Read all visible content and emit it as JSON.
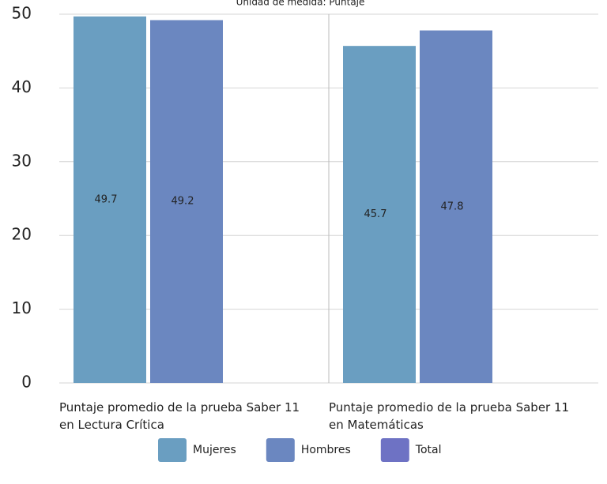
{
  "chart_data": {
    "type": "bar",
    "subtitle": "Unidad de medida: Puntaje",
    "categories": [
      "Puntaje promedio de la prueba Saber 11 en Lectura Crítica",
      "Puntaje promedio de la prueba Saber 11 en Matemáticas"
    ],
    "series": [
      {
        "name": "Mujeres",
        "color": "#6a9ec1",
        "values": [
          49.7,
          45.7
        ]
      },
      {
        "name": "Hombres",
        "color": "#6b87c0",
        "values": [
          49.2,
          47.8
        ]
      },
      {
        "name": "Total",
        "color": "#6e72c4",
        "values": [
          null,
          null
        ]
      }
    ],
    "ylim": [
      0,
      50
    ],
    "yticks": [
      0,
      10,
      20,
      30,
      40,
      50
    ],
    "grid": true,
    "legend": "bottom"
  }
}
